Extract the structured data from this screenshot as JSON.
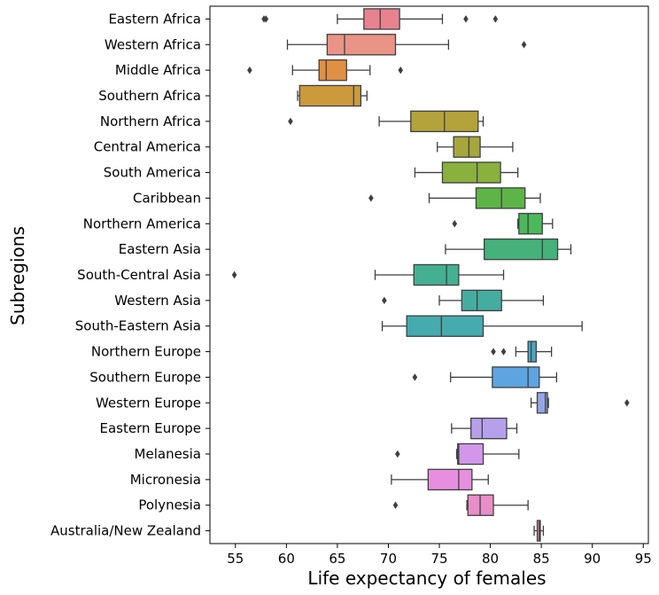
{
  "chart_data": {
    "type": "box",
    "orientation": "horizontal",
    "xlabel": "Life expectancy of females",
    "ylabel": "Subregions",
    "xlim": [
      52.5,
      95.5
    ],
    "xticks": [
      55,
      60,
      65,
      70,
      75,
      80,
      85,
      90,
      95
    ],
    "grid": false,
    "categories": [
      {
        "name": "Eastern Africa",
        "min": 65.0,
        "q1": 67.6,
        "median": 69.2,
        "q3": 71.1,
        "max": 75.3,
        "outliers": [
          57.8,
          58.0,
          77.6,
          80.5
        ],
        "color": "#e8828f"
      },
      {
        "name": "Western Africa",
        "min": 60.1,
        "q1": 64.0,
        "median": 65.7,
        "q3": 70.7,
        "max": 75.9,
        "outliers": [
          83.3
        ],
        "color": "#e99486"
      },
      {
        "name": "Middle Africa",
        "min": 60.6,
        "q1": 63.2,
        "median": 63.9,
        "q3": 65.9,
        "max": 68.2,
        "outliers": [
          56.4,
          71.2
        ],
        "color": "#e09045"
      },
      {
        "name": "Southern Africa",
        "min": 61.1,
        "q1": 61.3,
        "median": 66.6,
        "q3": 67.3,
        "max": 67.9,
        "outliers": [],
        "color": "#cc9a3c"
      },
      {
        "name": "Northern Africa",
        "min": 69.1,
        "q1": 72.2,
        "median": 75.5,
        "q3": 78.8,
        "max": 79.3,
        "outliers": [
          60.4
        ],
        "color": "#b3a33a"
      },
      {
        "name": "Central America",
        "min": 74.8,
        "q1": 76.4,
        "median": 77.9,
        "q3": 79.0,
        "max": 82.2,
        "outliers": [],
        "color": "#a6a63c"
      },
      {
        "name": "South America",
        "min": 72.6,
        "q1": 75.3,
        "median": 78.7,
        "q3": 81.0,
        "max": 82.7,
        "outliers": [],
        "color": "#8ab03e"
      },
      {
        "name": "Caribbean",
        "min": 74.0,
        "q1": 78.6,
        "median": 81.1,
        "q3": 83.4,
        "max": 84.9,
        "outliers": [
          68.3
        ],
        "color": "#5db547"
      },
      {
        "name": "Northern America",
        "min": 82.7,
        "q1": 82.8,
        "median": 83.7,
        "q3": 85.1,
        "max": 86.1,
        "outliers": [
          76.5
        ],
        "color": "#4cb85c"
      },
      {
        "name": "Eastern Asia",
        "min": 75.6,
        "q1": 79.4,
        "median": 85.1,
        "q3": 86.6,
        "max": 87.9,
        "outliers": [],
        "color": "#44b27a"
      },
      {
        "name": "South-Central Asia",
        "min": 68.7,
        "q1": 72.5,
        "median": 75.7,
        "q3": 76.9,
        "max": 81.3,
        "outliers": [
          54.9
        ],
        "color": "#45af92"
      },
      {
        "name": "Western Asia",
        "min": 75.0,
        "q1": 77.2,
        "median": 78.7,
        "q3": 81.1,
        "max": 85.2,
        "outliers": [
          69.6
        ],
        "color": "#45ad9f"
      },
      {
        "name": "South-Eastern Asia",
        "min": 69.4,
        "q1": 71.8,
        "median": 75.2,
        "q3": 79.3,
        "max": 89.0,
        "outliers": [],
        "color": "#45abae"
      },
      {
        "name": "Northern Europe",
        "min": 82.5,
        "q1": 83.7,
        "median": 84.0,
        "q3": 84.5,
        "max": 86.0,
        "outliers": [
          80.3,
          81.3
        ],
        "color": "#48a8c4"
      },
      {
        "name": "Southern Europe",
        "min": 76.1,
        "q1": 80.2,
        "median": 83.7,
        "q3": 84.8,
        "max": 86.5,
        "outliers": [
          72.6
        ],
        "color": "#5ca5e0"
      },
      {
        "name": "Western Europe",
        "min": 84.0,
        "q1": 84.6,
        "median": 85.4,
        "q3": 85.6,
        "max": 85.7,
        "outliers": [
          93.4
        ],
        "color": "#95a6e8"
      },
      {
        "name": "Eastern Europe",
        "min": 76.2,
        "q1": 78.1,
        "median": 79.2,
        "q3": 81.6,
        "max": 82.6,
        "outliers": [],
        "color": "#b7a0ea"
      },
      {
        "name": "Melanesia",
        "min": 76.7,
        "q1": 76.8,
        "median": 76.9,
        "q3": 79.3,
        "max": 82.8,
        "outliers": [
          70.9
        ],
        "color": "#d397ea"
      },
      {
        "name": "Micronesia",
        "min": 70.3,
        "q1": 73.9,
        "median": 76.9,
        "q3": 78.2,
        "max": 79.8,
        "outliers": [],
        "color": "#e88ee0"
      },
      {
        "name": "Polynesia",
        "min": 77.7,
        "q1": 77.8,
        "median": 79.0,
        "q3": 80.3,
        "max": 83.7,
        "outliers": [
          70.7
        ],
        "color": "#ea8ec8"
      },
      {
        "name": "Australia/New Zealand",
        "min": 84.3,
        "q1": 84.6,
        "median": 84.8,
        "q3": 84.9,
        "max": 85.2,
        "outliers": [],
        "color": "#e98aa3"
      }
    ]
  }
}
